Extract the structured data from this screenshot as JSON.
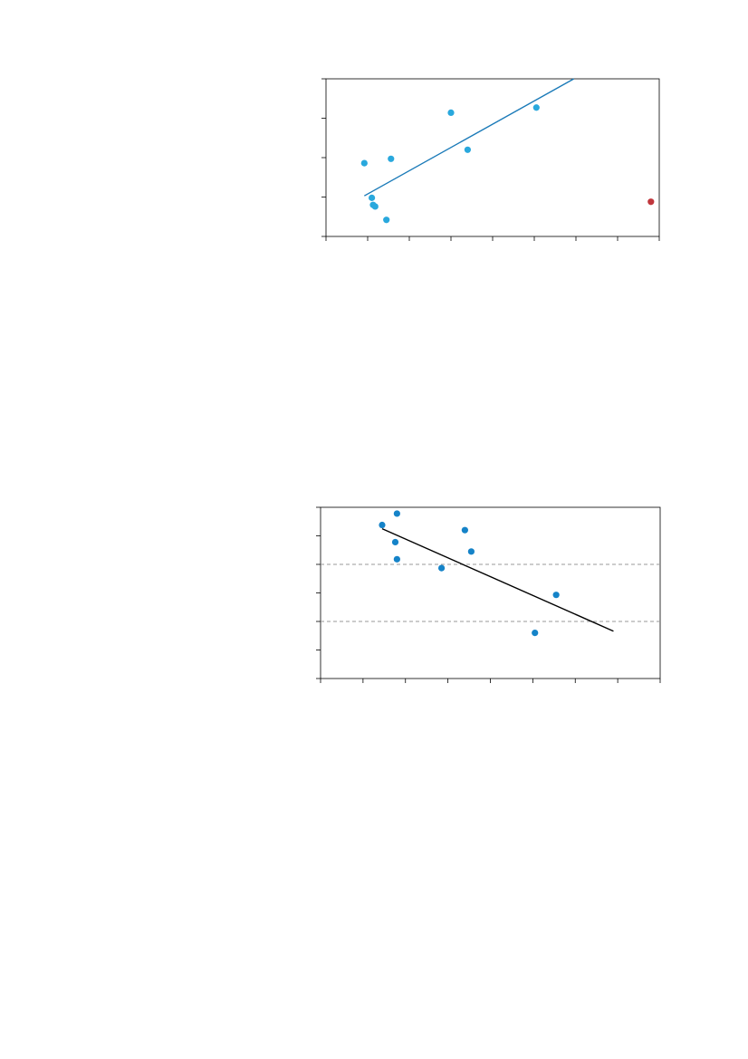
{
  "chart_data": [
    {
      "type": "scatter",
      "title": "",
      "xlabel": "",
      "ylabel": "",
      "xlim": [
        0,
        8
      ],
      "ylim": [
        0,
        4
      ],
      "x_tick_count": 9,
      "y_tick_count": 5,
      "grid": false,
      "colors": {
        "points": "#29a8dd",
        "outlier": "#c0363c",
        "trend": "#1a7ab8",
        "axes": "#000000"
      },
      "series": [
        {
          "values": [
            [
              0.92,
              1.86
            ],
            [
              1.1,
              0.98
            ],
            [
              1.13,
              0.8
            ],
            [
              1.18,
              0.76
            ],
            [
              1.45,
              0.42
            ],
            [
              1.56,
              1.97
            ],
            [
              3.0,
              3.14
            ],
            [
              3.4,
              2.2
            ],
            [
              5.05,
              3.27
            ]
          ]
        }
      ],
      "outliers": [
        [
          7.8,
          0.88
        ]
      ],
      "trendline": [
        [
          0.92,
          1.03
        ],
        [
          5.95,
          4.0
        ]
      ]
    },
    {
      "type": "scatter",
      "title": "",
      "xlabel": "",
      "ylabel": "",
      "xlim": [
        0,
        8
      ],
      "ylim": [
        0,
        6
      ],
      "x_tick_count": 9,
      "y_tick_count": 7,
      "grid": false,
      "colors": {
        "points": "#1583c8",
        "trend": "#000000",
        "reference": "#999999",
        "axes": "#000000"
      },
      "series": [
        {
          "values": [
            [
              1.45,
              5.38
            ],
            [
              1.8,
              5.78
            ],
            [
              1.76,
              4.78
            ],
            [
              1.8,
              4.18
            ],
            [
              2.85,
              3.87
            ],
            [
              3.4,
              5.2
            ],
            [
              3.55,
              4.45
            ],
            [
              5.05,
              1.6
            ],
            [
              5.55,
              2.93
            ]
          ]
        }
      ],
      "reference_lines": [
        4.0,
        2.0
      ],
      "trendline": [
        [
          1.45,
          5.25
        ],
        [
          6.9,
          1.66
        ]
      ]
    }
  ]
}
